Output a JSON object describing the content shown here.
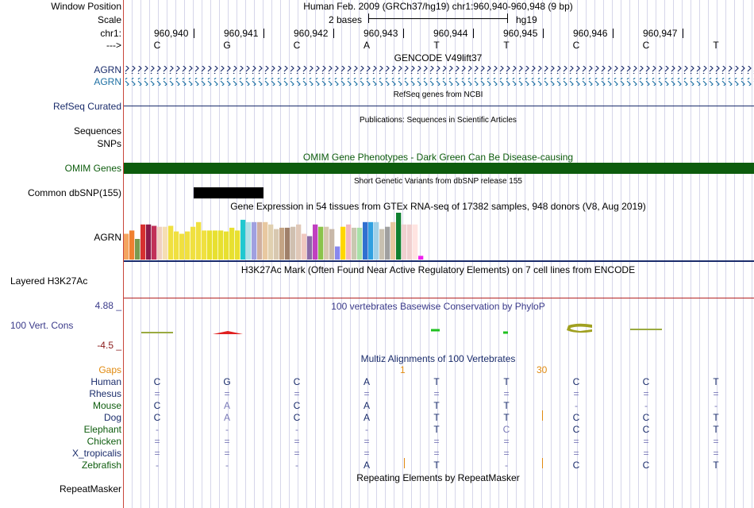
{
  "colors": {
    "navy": "#1a2c6b",
    "omim": "#0d5c0d",
    "gtexSep": "#1a2c6b",
    "h3k": "#b22222"
  },
  "labels": {
    "window_position": "Window Position",
    "scale": "Scale",
    "chr": "chr1:",
    "strand": "--->",
    "agrn1": "AGRN",
    "agrn2": "AGRN",
    "refseq": "RefSeq Curated",
    "sequences": "Sequences",
    "snps": "SNPs",
    "omim": "OMIM Genes",
    "dbsnp": "Common dbSNP(155)",
    "agrn_gtex": "AGRN",
    "h3k27ac": "Layered H3K27Ac",
    "phylo_max": "4.88 _",
    "phylo": "100 Vert. Cons",
    "phylo_min": "-4.5 _",
    "gaps": "Gaps",
    "repeatmasker": "RepeatMasker"
  },
  "header": {
    "title": "Human Feb. 2009 (GRCh37/hg19)   chr1:960,940-960,948 (9 bp)",
    "scale_text": "2 bases",
    "assembly": "hg19"
  },
  "ruler": [
    "960,940",
    "960,941",
    "960,942",
    "960,943",
    "960,944",
    "960,945",
    "960,946",
    "960,947"
  ],
  "sequence": [
    "C",
    "G",
    "C",
    "A",
    "T",
    "T",
    "C",
    "C",
    "T"
  ],
  "tracks": {
    "gencode": "GENCODE V49lift37",
    "refseq": "RefSeq genes from NCBI",
    "publications": "Publications: Sequences in Scientific Articles",
    "omim": "OMIM Gene Phenotypes - Dark Green Can Be Disease-causing",
    "dbsnp": "Short Genetic Variants from dbSNP release 155",
    "gtex": "Gene Expression in 54 tissues from GTEx RNA-seq of 17382 samples, 948 donors (V8, Aug 2019)",
    "h3k27ac": "H3K27Ac Mark (Often Found Near Active Regulatory Elements) on 7 cell lines from ENCODE",
    "phylop": "100 vertebrates Basewise Conservation by PhyloP",
    "multiz": "Multiz Alignments of 100 Vertebrates",
    "repeatmasker": "Repeating Elements by RepeatMasker"
  },
  "gaps": {
    "g1": "1",
    "g2": "30"
  },
  "gtex_values": [
    0.55,
    0.62,
    0.44,
    0.75,
    0.75,
    0.72,
    0.7,
    0.7,
    0.72,
    0.6,
    0.55,
    0.6,
    0.7,
    0.8,
    0.62,
    0.62,
    0.62,
    0.62,
    0.6,
    0.68,
    0.62,
    0.85,
    0.8,
    0.8,
    0.8,
    0.8,
    0.75,
    0.65,
    0.68,
    0.68,
    0.7,
    0.75,
    0.55,
    0.5,
    0.75,
    0.7,
    0.7,
    0.65,
    0.28,
    0.7,
    0.75,
    0.68,
    0.68,
    0.8,
    0.8,
    0.8,
    0.65,
    0.7,
    0.8,
    1.0,
    0.75,
    0.75,
    0.75,
    0.08
  ],
  "gtex_colors": [
    "#f4a460",
    "#f08030",
    "#7a9a50",
    "#d73030",
    "#8b1a4a",
    "#c13058",
    "#f0d0c0",
    "#f5deb3",
    "#f0e040",
    "#f0e040",
    "#f0e040",
    "#f0e040",
    "#f0e040",
    "#f0e040",
    "#f0e040",
    "#e8e030",
    "#e8e030",
    "#e8e030",
    "#e8e030",
    "#e8e030",
    "#e8e030",
    "#20c8d0",
    "#b0e0e6",
    "#a0a0e0",
    "#d0b0a0",
    "#e8c8a0",
    "#e0d0b0",
    "#d8c8b0",
    "#c4a484",
    "#a0806a",
    "#d0c0b0",
    "#e0c8b8",
    "#f0c8c0",
    "#8b6aa8",
    "#c040c0",
    "#8bc34a",
    "#d8c8b0",
    "#c8b8a8",
    "#8888ee",
    "#ffd700",
    "#f0b8c0",
    "#c8c8b0",
    "#a8e0a8",
    "#3070d0",
    "#30a0e0",
    "#a0d0e8",
    "#c8c0b0",
    "#a0a0a0",
    "#e8c8a0",
    "#108030",
    "#f0d0d0",
    "#f0d0d0",
    "#ffe4e1",
    "#ee22ee"
  ],
  "multiz": {
    "species": [
      "Human",
      "Rhesus",
      "Mouse",
      "Dog",
      "Elephant",
      "Chicken",
      "X_tropicalis",
      "Zebrafish"
    ],
    "rows": [
      [
        "C",
        "G",
        "C",
        "A",
        "T",
        "T",
        "C",
        "C",
        "T"
      ],
      [
        "=",
        "=",
        "=",
        "=",
        "=",
        "=",
        "=",
        "=",
        "="
      ],
      [
        "C",
        "A",
        "C",
        "A",
        "T",
        "T",
        "-",
        "-",
        "-"
      ],
      [
        "C",
        "A",
        "C",
        "A",
        "T",
        "T",
        "C",
        "C",
        "T"
      ],
      [
        "-",
        "-",
        "-",
        "-",
        "T",
        "C",
        "C",
        "C",
        "T"
      ],
      [
        "=",
        "=",
        "=",
        "=",
        "=",
        "=",
        "=",
        "=",
        "="
      ],
      [
        "=",
        "=",
        "=",
        "=",
        "=",
        "=",
        "=",
        "=",
        "="
      ],
      [
        "-",
        "-",
        "-",
        "A",
        "T",
        "-",
        "C",
        "C",
        "T"
      ]
    ]
  }
}
